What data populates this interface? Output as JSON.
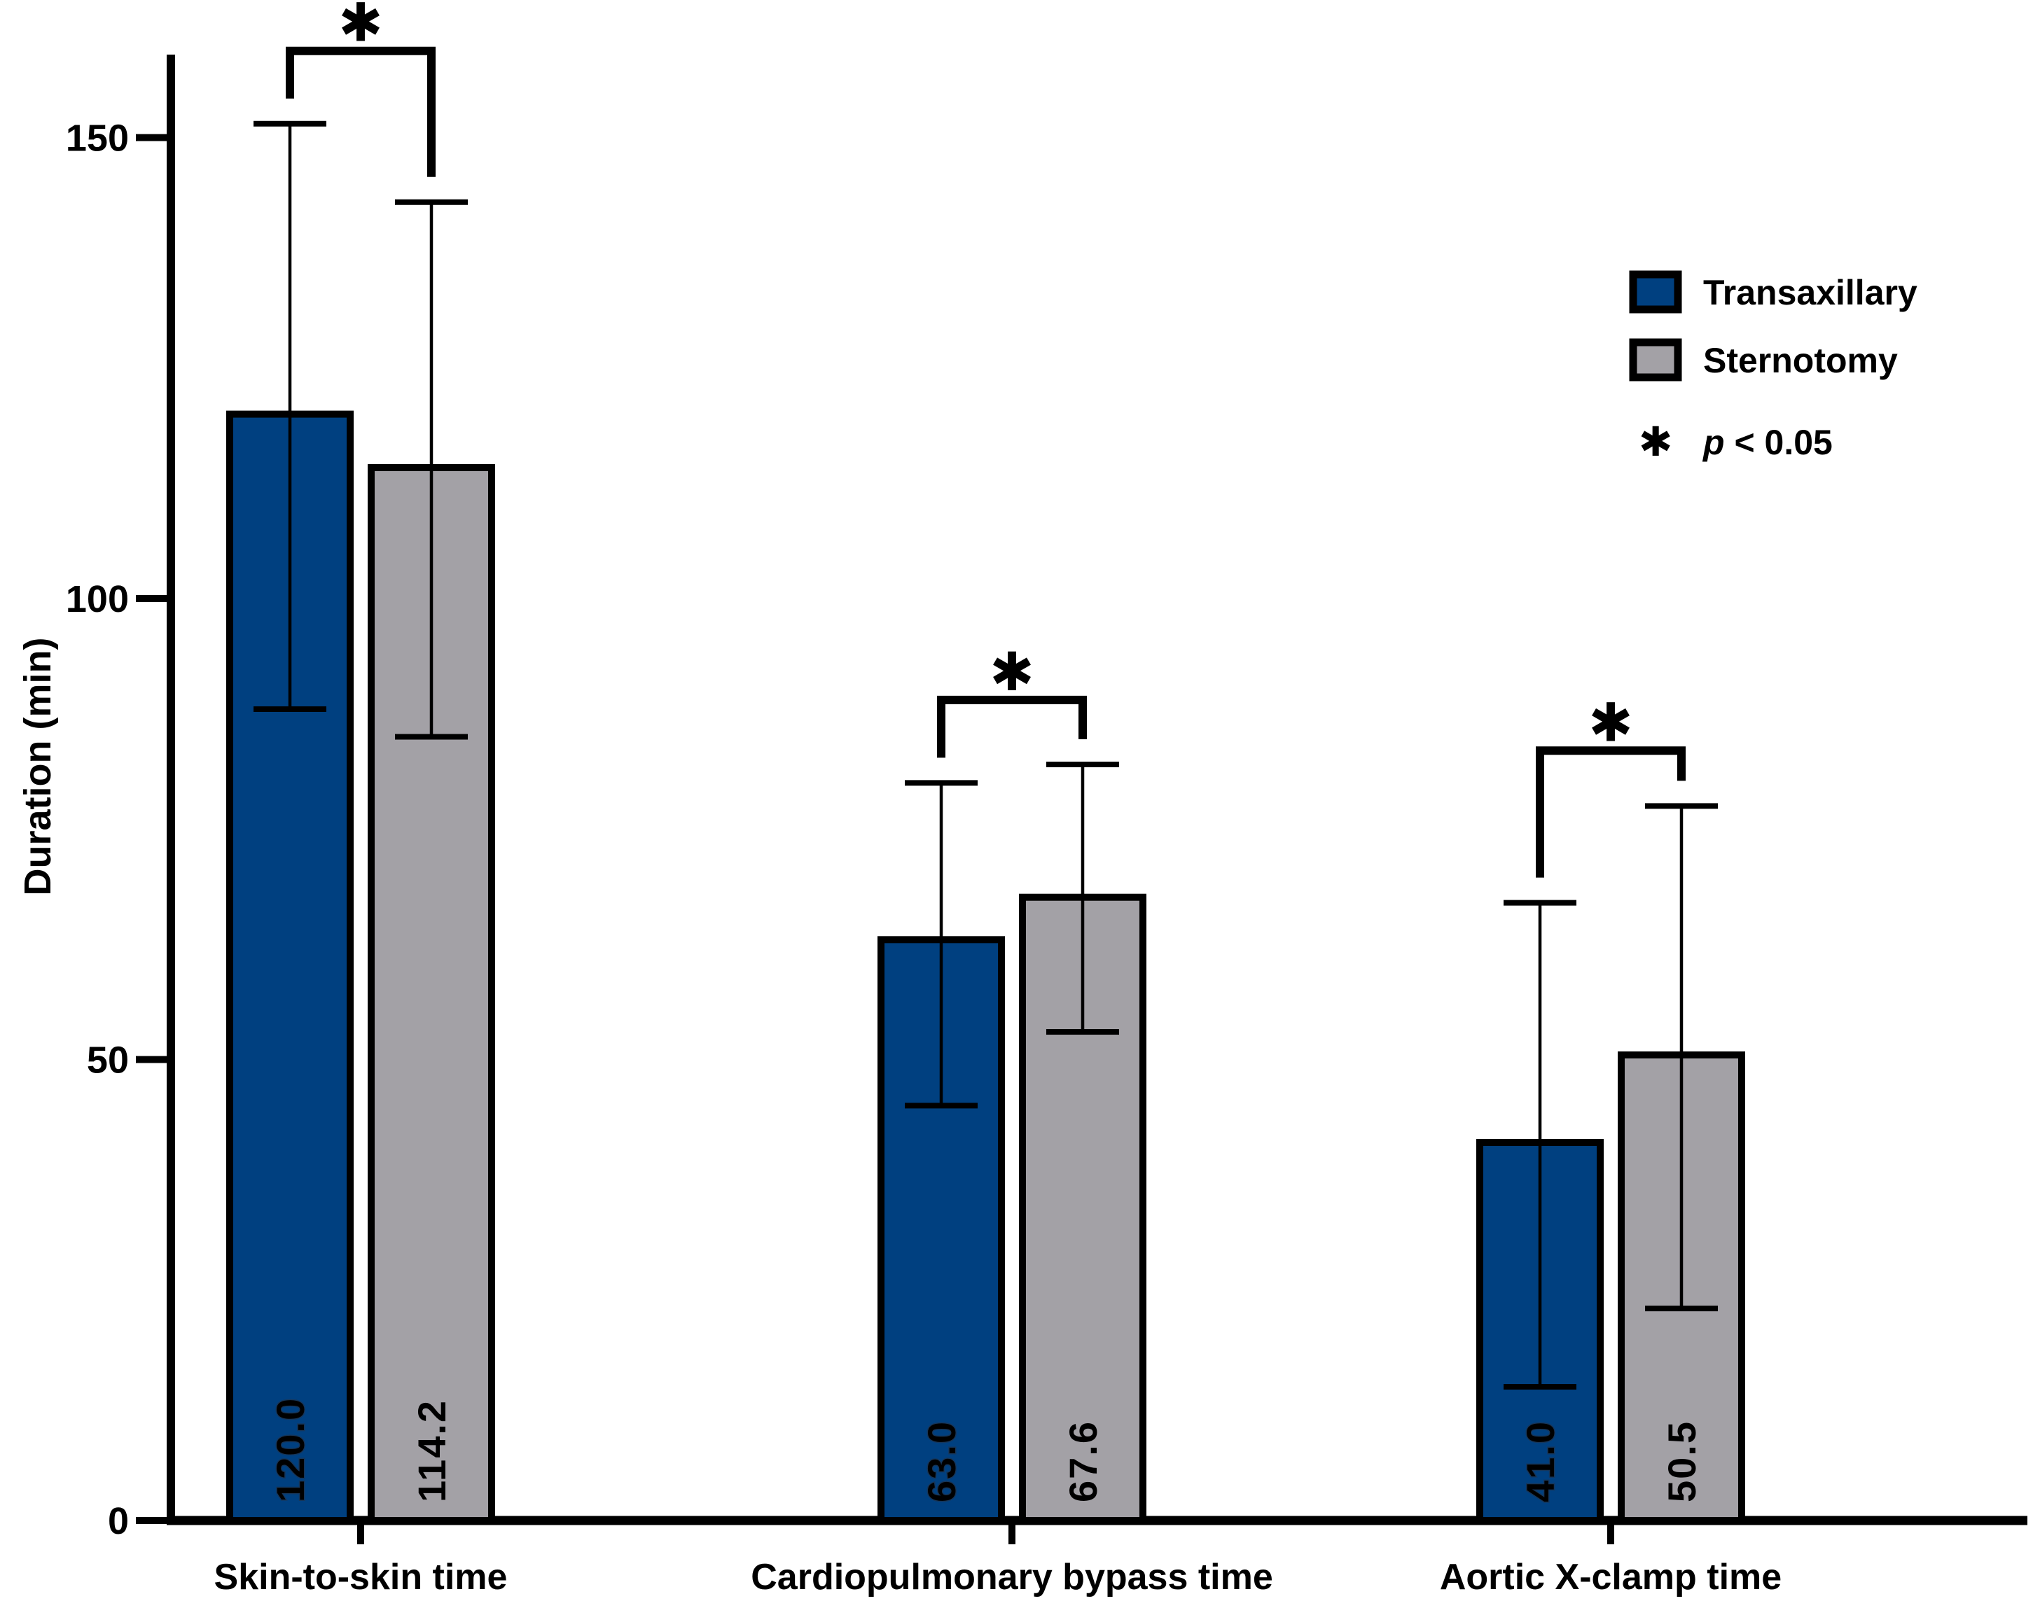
{
  "chart_data": {
    "type": "bar",
    "title": "",
    "xlabel": "",
    "ylabel": "Duration (min)",
    "ylim": [
      0,
      159
    ],
    "grid": false,
    "legend_position": "top-right",
    "background_color": "#ffffff",
    "axis_color": "#000000",
    "error_bar_color": "#000000",
    "bar_border_color": "#000000",
    "y_axis": {
      "ticks": [
        {
          "label": "0",
          "value": 0
        },
        {
          "label": "50",
          "value": 50
        },
        {
          "label": "100",
          "value": 100
        },
        {
          "label": "150",
          "value": 150
        }
      ]
    },
    "categories": [
      "Skin-to-skin time",
      "Cardiopulmonary bypass time",
      "Aortic X-clamp time"
    ],
    "series": [
      {
        "name": "Transaxillary",
        "color": "#004080",
        "label_color": "#ffffff",
        "values": [
          120.0,
          63.0,
          41.0
        ],
        "value_labels": [
          "120.0",
          "63.0",
          "41.0"
        ],
        "error_upper": [
          151.5,
          80,
          67
        ],
        "error_lower": [
          88,
          45,
          14.5
        ]
      },
      {
        "name": "Sternotomy",
        "color": "#A3A1A6",
        "label_color": "#0a0a0a",
        "values": [
          114.2,
          67.6,
          50.5
        ],
        "value_labels": [
          "114.2",
          "67.6",
          "50.5"
        ],
        "error_upper": [
          143,
          82,
          77.5
        ],
        "error_lower": [
          85,
          53,
          23
        ]
      }
    ],
    "significance": {
      "symbol": "✱",
      "note": "p < 0.05",
      "bracket_levels": [
        159.4,
        89,
        83.5
      ],
      "applies_to_groups": [
        0,
        1,
        2
      ]
    },
    "legend": {
      "entries": [
        {
          "label": "Transaxillary"
        },
        {
          "label": "Sternotomy"
        }
      ],
      "p_symbol": "✱",
      "p_italic_part": "p",
      "p_rest_part": " < 0.05"
    }
  }
}
